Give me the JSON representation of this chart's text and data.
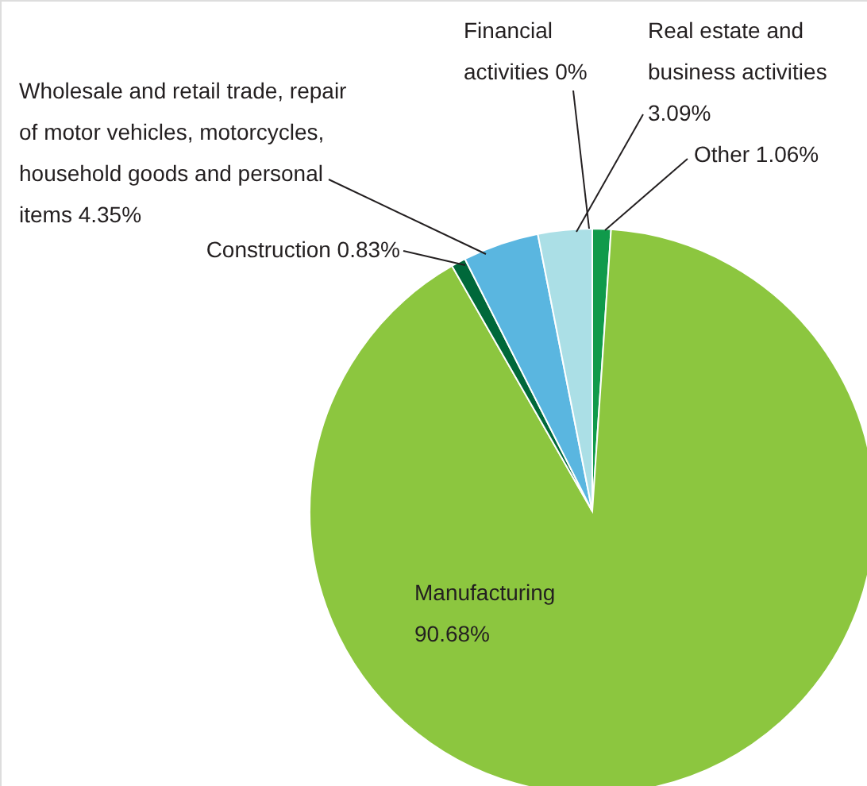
{
  "chart_data": {
    "type": "pie",
    "categories": [
      "Other",
      "Manufacturing",
      "Construction",
      "Wholesale and retail trade, repair of motor vehicles, motorcycles, household goods and personal items",
      "Financial activities",
      "Real estate and business activities"
    ],
    "values": [
      1.06,
      90.68,
      0.83,
      4.35,
      0,
      3.09
    ],
    "value_labels": [
      "1.06%",
      "90.68%",
      "0.83%",
      "4.35%",
      "0%",
      "3.09%"
    ],
    "colors": [
      "#109a4b",
      "#8cc63f",
      "#00683a",
      "#5ab6e0",
      "#7fc7e8",
      "#abdfe6"
    ]
  }
}
